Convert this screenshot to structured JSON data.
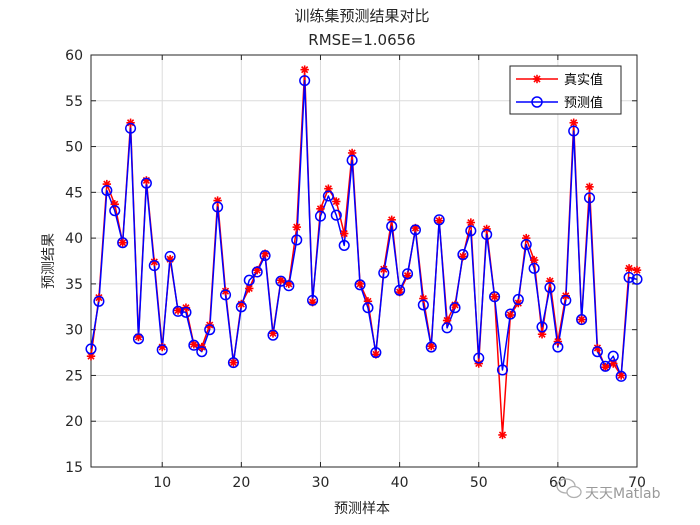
{
  "chart_data": {
    "type": "line",
    "title": "训练集预测结果对比",
    "subtitle": "RMSE=1.0656",
    "xlabel": "预测样本",
    "ylabel": "预测结果",
    "xlim": [
      1,
      70
    ],
    "ylim": [
      15,
      60
    ],
    "xticks": [
      10,
      20,
      30,
      40,
      50,
      60,
      70
    ],
    "yticks": [
      15,
      20,
      25,
      30,
      35,
      40,
      45,
      50,
      55,
      60
    ],
    "grid": true,
    "legend_position": "top-right",
    "x": [
      1,
      2,
      3,
      4,
      5,
      6,
      7,
      8,
      9,
      10,
      11,
      12,
      13,
      14,
      15,
      16,
      17,
      18,
      19,
      20,
      21,
      22,
      23,
      24,
      25,
      26,
      27,
      28,
      29,
      30,
      31,
      32,
      33,
      34,
      35,
      36,
      37,
      38,
      39,
      40,
      41,
      42,
      43,
      44,
      45,
      46,
      47,
      48,
      49,
      50,
      51,
      52,
      53,
      54,
      55,
      56,
      57,
      58,
      59,
      60,
      61,
      62,
      63,
      64,
      65,
      66,
      67,
      68,
      69,
      70
    ],
    "series": [
      {
        "name": "真实值",
        "color": "#ff0000",
        "marker": "asterisk",
        "values": [
          27.1,
          33.5,
          45.9,
          43.7,
          39.5,
          52.6,
          29.2,
          46.3,
          37.4,
          28.1,
          37.7,
          32.1,
          32.4,
          28.4,
          28.1,
          30.5,
          44.1,
          34.2,
          26.4,
          32.8,
          34.5,
          36.5,
          38.3,
          29.6,
          35.4,
          35.0,
          41.2,
          58.4,
          33.0,
          43.2,
          45.4,
          44.0,
          40.5,
          49.3,
          35.0,
          33.1,
          27.3,
          36.6,
          42.0,
          34.1,
          35.9,
          41.1,
          33.4,
          28.2,
          41.9,
          31.0,
          32.7,
          38.0,
          41.7,
          26.3,
          41.0,
          33.6,
          18.5,
          31.6,
          32.9,
          40.0,
          37.6,
          29.5,
          35.3,
          28.7,
          33.7,
          52.6,
          31.1,
          45.6,
          28.0,
          25.9,
          26.3,
          25.0,
          36.7,
          36.5
        ]
      },
      {
        "name": "预测值",
        "color": "#0000ff",
        "marker": "circle",
        "values": [
          27.9,
          33.1,
          45.2,
          43.0,
          39.5,
          52.0,
          29.0,
          46.0,
          37.0,
          27.8,
          38.0,
          32.0,
          31.9,
          28.3,
          27.6,
          30.0,
          43.4,
          33.8,
          26.4,
          32.5,
          35.4,
          36.3,
          38.1,
          29.4,
          35.3,
          34.8,
          39.8,
          57.2,
          33.2,
          42.4,
          44.6,
          42.5,
          39.2,
          48.5,
          34.9,
          32.4,
          27.5,
          36.2,
          41.3,
          34.3,
          36.1,
          40.9,
          32.7,
          28.1,
          42.0,
          30.2,
          32.4,
          38.2,
          40.8,
          26.9,
          40.4,
          33.6,
          25.6,
          31.7,
          33.3,
          39.3,
          36.7,
          30.3,
          34.6,
          28.1,
          33.2,
          51.7,
          31.1,
          44.4,
          27.6,
          26.0,
          27.1,
          24.9,
          35.7,
          35.5
        ]
      }
    ]
  },
  "watermark": {
    "text": "天天Matlab"
  }
}
